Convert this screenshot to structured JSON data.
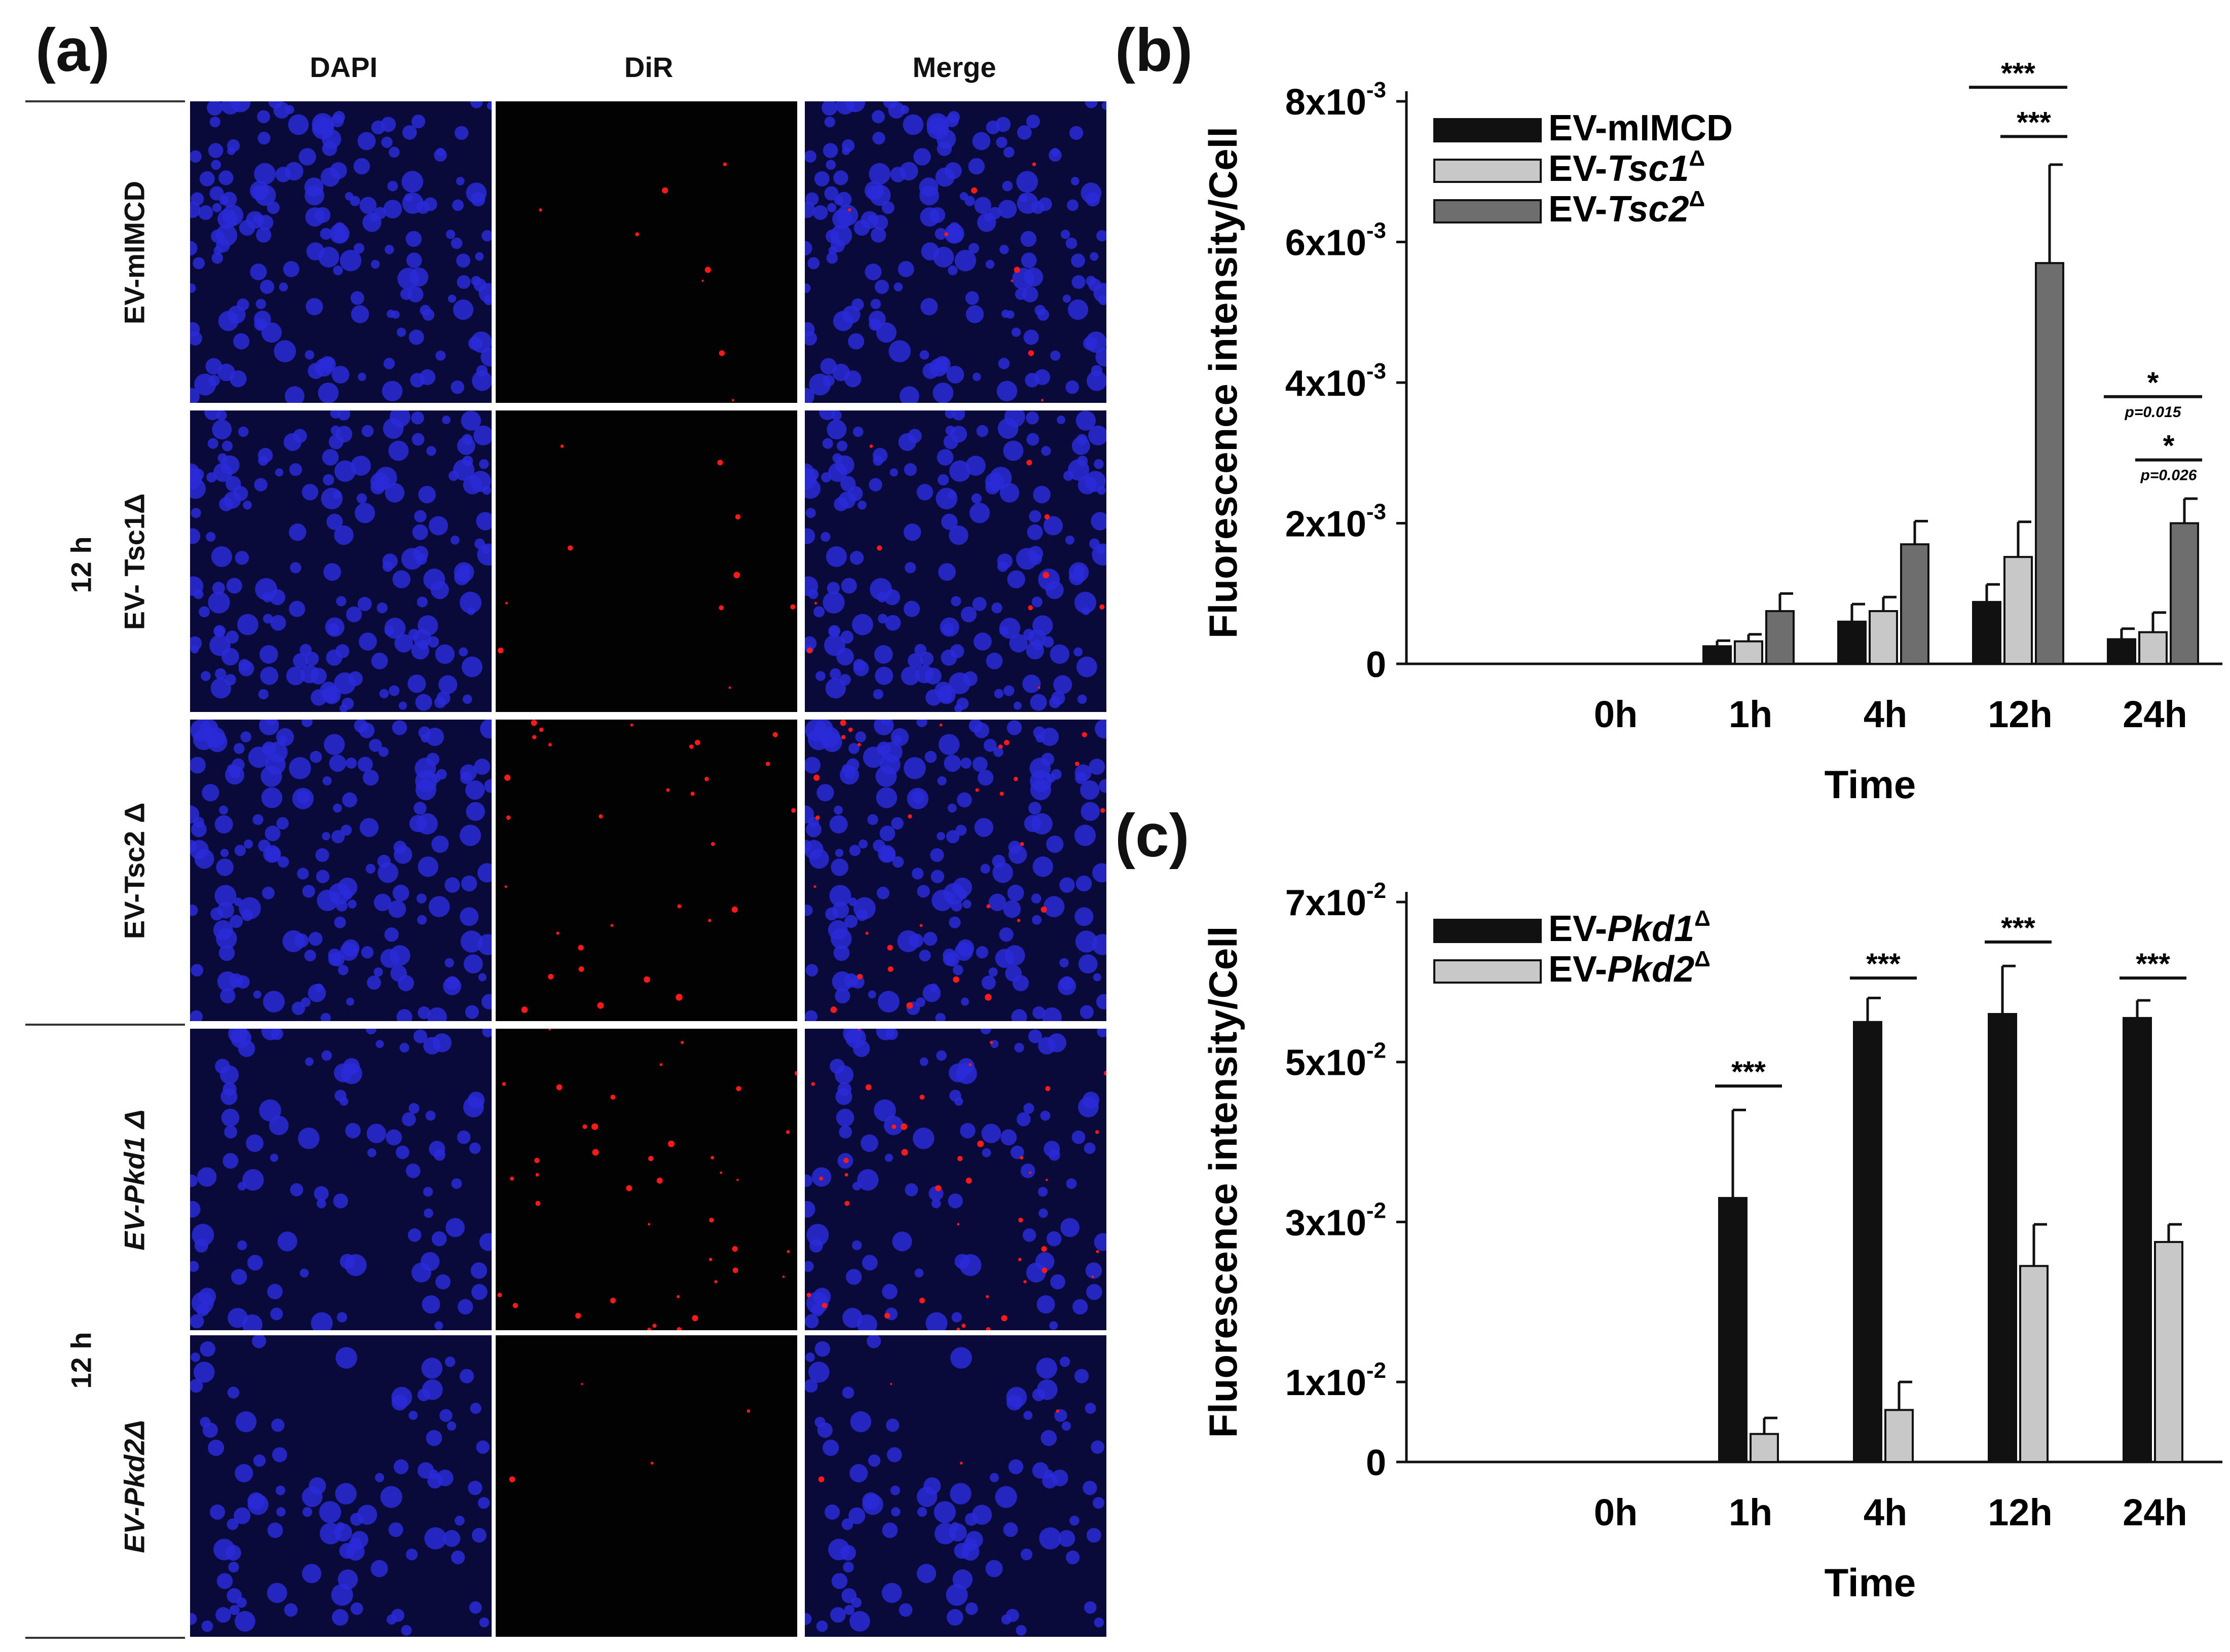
{
  "panel_a": {
    "letter": "(a)",
    "columns": [
      "DAPI",
      "DiR",
      "Merge"
    ],
    "group_labels": [
      "12 h",
      "12 h"
    ],
    "rows": [
      {
        "label": "EV-mIMCD",
        "red_density": 8,
        "italic": false
      },
      {
        "label": "EV- Tsc1Δ",
        "red_density": 10,
        "italic": false
      },
      {
        "label": "EV-Tsc2 Δ",
        "red_density": 30,
        "italic": false
      },
      {
        "label": "EV-Pkd1 Δ",
        "red_density": 40,
        "italic": true
      },
      {
        "label": "EV-Pkd2Δ",
        "red_density": 4,
        "italic": true
      }
    ]
  },
  "chart_data": [
    {
      "panel": "(b)",
      "type": "bar",
      "ylabel": "Fluorescence intensity/Cell",
      "xlabel": "Time",
      "categories": [
        "0h",
        "1h",
        "4h",
        "12h",
        "24h"
      ],
      "ylim": [
        0,
        0.008
      ],
      "yticks": [
        {
          "value": 0,
          "label": "0"
        },
        {
          "value": 0.002,
          "label": "2x10-3"
        },
        {
          "value": 0.004,
          "label": "4x10-3"
        },
        {
          "value": 0.006,
          "label": "6x10-3"
        },
        {
          "value": 0.008,
          "label": "8x10-3"
        }
      ],
      "series": [
        {
          "name": "EV-mIMCD",
          "color": "#111111",
          "values": [
            0,
            0.00025,
            0.0006,
            0.00088,
            0.00035
          ],
          "errors": [
            0,
            8e-05,
            0.00025,
            0.00025,
            0.00015
          ]
        },
        {
          "name": "EV-Tsc1Δ",
          "color": "#c8c8c8",
          "values": [
            0,
            0.00032,
            0.00075,
            0.00152,
            0.00045
          ],
          "errors": [
            0,
            0.0001,
            0.0002,
            0.0005,
            0.00028
          ]
        },
        {
          "name": "EV-Tsc2Δ",
          "color": "#6e6e6e",
          "values": [
            0,
            0.00075,
            0.0017,
            0.0057,
            0.002
          ],
          "errors": [
            0,
            0.00025,
            0.00033,
            0.0014,
            0.00035
          ]
        }
      ],
      "annotations": [
        {
          "text": "***",
          "category": "12h",
          "from": 0,
          "to": 2,
          "level": 0.0082
        },
        {
          "text": "***",
          "category": "12h",
          "from": 1,
          "to": 2,
          "level": 0.0075
        },
        {
          "text": "*",
          "category": "24h",
          "from": 0,
          "to": 2,
          "level": 0.0038,
          "pvalue": "p=0.015"
        },
        {
          "text": "*",
          "category": "24h",
          "from": 1,
          "to": 2,
          "level": 0.0029,
          "pvalue": "p=0.026"
        }
      ]
    },
    {
      "panel": "(c)",
      "type": "bar",
      "ylabel": "Fluorescence intensity/Cell",
      "xlabel": "Time",
      "categories": [
        "0h",
        "1h",
        "4h",
        "12h",
        "24h"
      ],
      "ylim": [
        0,
        0.07
      ],
      "yticks": [
        {
          "value": 0,
          "label": "0"
        },
        {
          "value": 0.01,
          "label": "1x10-2"
        },
        {
          "value": 0.03,
          "label": "3x10-2"
        },
        {
          "value": 0.05,
          "label": "5x10-2"
        },
        {
          "value": 0.07,
          "label": "7x10-2"
        }
      ],
      "series": [
        {
          "name": "EV-Pkd1Δ",
          "color": "#111111",
          "values": [
            0,
            0.033,
            0.055,
            0.056,
            0.0555
          ],
          "errors": [
            0,
            0.011,
            0.003,
            0.006,
            0.0022
          ]
        },
        {
          "name": "EV-Pkd2Δ",
          "color": "#c8c8c8",
          "values": [
            0,
            0.0035,
            0.0065,
            0.0245,
            0.0275
          ],
          "errors": [
            0,
            0.002,
            0.0035,
            0.0052,
            0.0022
          ]
        }
      ],
      "annotations": [
        {
          "text": "***",
          "category": "1h",
          "from": 0,
          "to": 1,
          "level": 0.047
        },
        {
          "text": "***",
          "category": "4h",
          "from": 0,
          "to": 1,
          "level": 0.0605
        },
        {
          "text": "***",
          "category": "12h",
          "from": 0,
          "to": 1,
          "level": 0.065
        },
        {
          "text": "***",
          "category": "24h",
          "from": 0,
          "to": 1,
          "level": 0.0605
        }
      ]
    }
  ]
}
